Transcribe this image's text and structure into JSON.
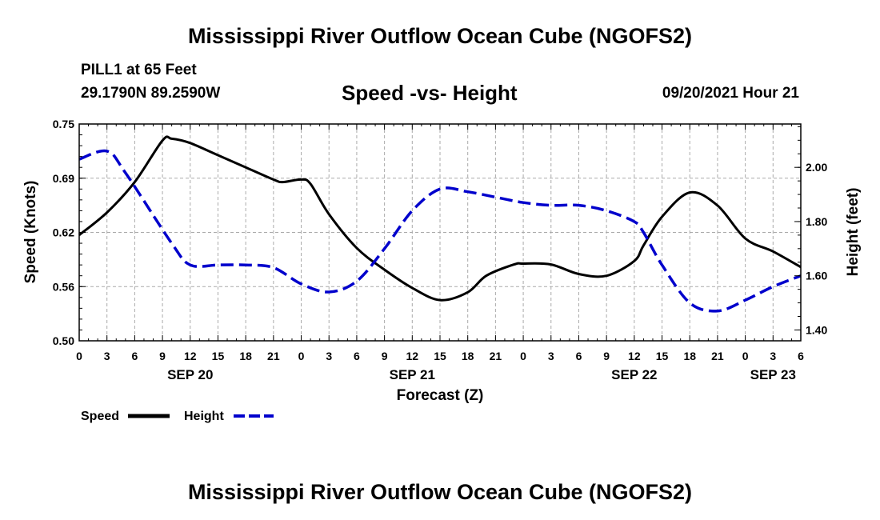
{
  "header": {
    "title": "Mississippi River Outflow Ocean Cube (NGOFS2)",
    "station": "PILL1 at 65 Feet",
    "coords": "29.1790N  89.2590W",
    "subtitle": "Speed -vs- Height",
    "datetime": "09/20/2021 Hour 21"
  },
  "footer": {
    "title": "Mississippi River Outflow Ocean Cube (NGOFS2)"
  },
  "colors": {
    "speed": "#000000",
    "height": "#0000cc",
    "grid": "#aaaaaa"
  },
  "chart_data": {
    "type": "line",
    "title": "Speed -vs- Height",
    "xlabel": "Forecast (Z)",
    "ylabel_left": "Speed (Knots)",
    "ylabel_right": "Height (feet)",
    "x_range_hours": [
      0,
      78
    ],
    "ylim_left": [
      0.5,
      0.75
    ],
    "ylim_right": [
      1.36,
      2.16
    ],
    "x_tick_labels": [
      "0",
      "3",
      "6",
      "9",
      "12",
      "15",
      "18",
      "21",
      "0",
      "3",
      "6",
      "9",
      "12",
      "15",
      "18",
      "21",
      "0",
      "3",
      "6",
      "9",
      "12",
      "15",
      "18",
      "21",
      "0",
      "3",
      "6"
    ],
    "date_labels": [
      {
        "label": "SEP 20",
        "hour": 12
      },
      {
        "label": "SEP 21",
        "hour": 36
      },
      {
        "label": "SEP 22",
        "hour": 60
      },
      {
        "label": "SEP 23",
        "hour": 75
      }
    ],
    "left_tick_labels": [
      "0.50",
      "0.56",
      "0.62",
      "0.69",
      "0.75"
    ],
    "left_tick_values": [
      0.5,
      0.5625,
      0.625,
      0.6875,
      0.75
    ],
    "right_tick_labels": [
      "1.40",
      "1.60",
      "1.80",
      "2.00"
    ],
    "right_tick_values": [
      1.4,
      1.6,
      1.8,
      2.0
    ],
    "grid": true,
    "legend_position": "bottom-left",
    "series": [
      {
        "name": "Speed",
        "axis": "left",
        "style": "solid",
        "hours": [
          0,
          3,
          6,
          9,
          10,
          12,
          15,
          18,
          21,
          22,
          24,
          25,
          27,
          30,
          33,
          36,
          39,
          42,
          44,
          47,
          48,
          51,
          54,
          57,
          60,
          61,
          63,
          66,
          69,
          72,
          75,
          78
        ],
        "values": [
          0.622,
          0.648,
          0.683,
          0.731,
          0.733,
          0.728,
          0.714,
          0.7,
          0.686,
          0.683,
          0.686,
          0.681,
          0.646,
          0.607,
          0.582,
          0.561,
          0.547,
          0.556,
          0.575,
          0.588,
          0.589,
          0.588,
          0.577,
          0.575,
          0.592,
          0.61,
          0.643,
          0.671,
          0.656,
          0.618,
          0.603,
          0.585
        ]
      },
      {
        "name": "Height",
        "axis": "right",
        "style": "dashed",
        "hours": [
          0,
          3,
          5,
          10,
          12,
          15,
          18,
          21,
          24,
          27,
          30,
          33,
          36,
          39,
          42,
          45,
          48,
          51,
          54,
          57,
          60,
          61,
          63,
          66,
          69,
          72,
          75,
          78
        ],
        "values": [
          2.03,
          2.06,
          1.98,
          1.72,
          1.64,
          1.64,
          1.64,
          1.63,
          1.57,
          1.54,
          1.58,
          1.7,
          1.84,
          1.92,
          1.91,
          1.89,
          1.87,
          1.86,
          1.86,
          1.84,
          1.8,
          1.76,
          1.64,
          1.5,
          1.47,
          1.51,
          1.56,
          1.6
        ]
      }
    ]
  }
}
